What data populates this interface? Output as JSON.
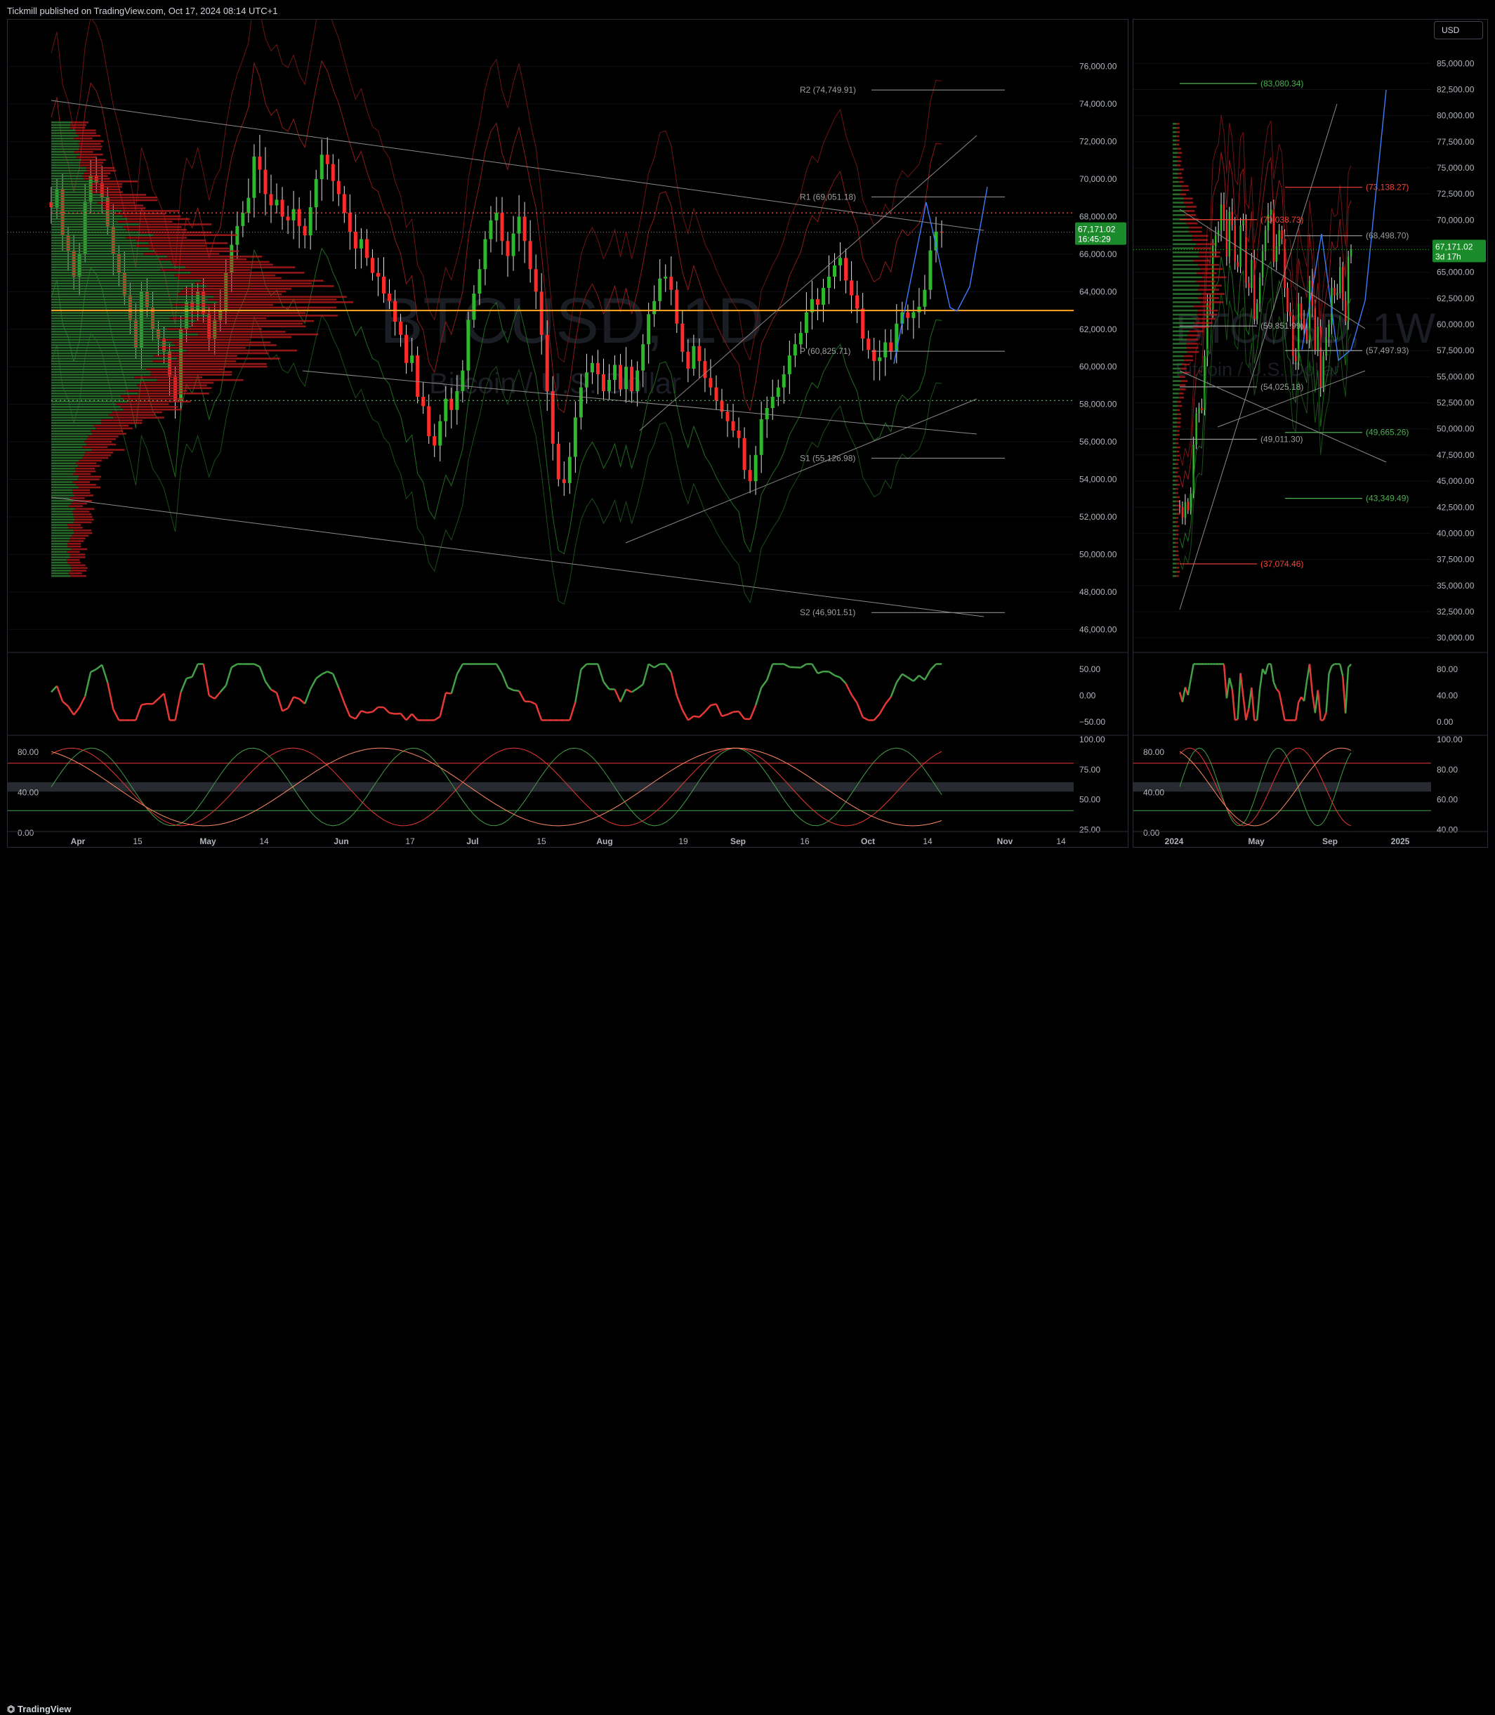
{
  "header": {
    "published": "Tickmill published on TradingView.com, Oct 17, 2024 08:14 UTC+1"
  },
  "footer": {
    "brand": "TradingView"
  },
  "currency_button": "USD",
  "colors": {
    "up": "#26a69a",
    "green": "#2e7d32",
    "red": "#d32f2f",
    "orange": "#ffa726",
    "blue": "#2962ff",
    "grid": "#1e222d"
  },
  "chart_data": [
    {
      "type": "candlestick",
      "symbol_watermark": "BTCUSD, 1D",
      "subtitle_watermark": "Bitcoin / U.S. Dollar",
      "last_price": "67,171.02",
      "countdown": "16:45:29",
      "y_ticks": [
        "76,000.00",
        "74,000.00",
        "72,000.00",
        "70,000.00",
        "68,000.00",
        "66,000.00",
        "64,000.00",
        "62,000.00",
        "60,000.00",
        "58,000.00",
        "56,000.00",
        "54,000.00",
        "52,000.00",
        "50,000.00",
        "48,000.00",
        "46,000.00"
      ],
      "ylim": [
        45000,
        77000
      ],
      "x_ticks": [
        "Apr",
        "15",
        "May",
        "14",
        "Jun",
        "17",
        "Jul",
        "15",
        "Aug",
        "19",
        "Sep",
        "16",
        "Oct",
        "14",
        "Nov",
        "14"
      ],
      "pivots": [
        {
          "label": "R2 (74,749.91)",
          "value": 74749.91
        },
        {
          "label": "R1 (69,051.18)",
          "value": 69051.18
        },
        {
          "label": "P (60,825.71)",
          "value": 60825.71
        },
        {
          "label": "S1 (55,126.98)",
          "value": 55126.98
        },
        {
          "label": "S2 (46,901.51)",
          "value": 46901.51
        }
      ],
      "poc_level": 63000,
      "value_area_high": 68200,
      "value_area_low": 58200,
      "closes": [
        68500,
        69500,
        67000,
        66200,
        64800,
        66000,
        68800,
        70200,
        69800,
        69000,
        67500,
        66000,
        65000,
        63800,
        62500,
        61000,
        64000,
        63200,
        62000,
        61500,
        60800,
        59500,
        58200,
        62000,
        63500,
        63000,
        64000,
        62800,
        61500,
        62500,
        63000,
        65000,
        66500,
        67500,
        68200,
        69000,
        71200,
        70500,
        69200,
        68600,
        68900,
        68000,
        67800,
        68400,
        67500,
        67000,
        68500,
        70000,
        71300,
        70800,
        69900,
        69200,
        68200,
        67200,
        66300,
        66800,
        65800,
        65000,
        64800,
        63900,
        63500,
        62400,
        61700,
        60200,
        60600,
        58400,
        57900,
        56300,
        55800,
        57100,
        58300,
        57700,
        58700,
        59800,
        62500,
        63900,
        65200,
        66800,
        67800,
        68200,
        66700,
        65900,
        67100,
        68000,
        66700,
        65200,
        64000,
        61700,
        58700,
        55900,
        54000,
        53800,
        55200,
        57300,
        58900,
        59700,
        60200,
        59600,
        58700,
        59300,
        60100,
        58800,
        60000,
        58700,
        59800,
        61200,
        62800,
        63500,
        64700,
        64800,
        64100,
        62300,
        60800,
        59900,
        61100,
        60300,
        59400,
        58900,
        58200,
        57600,
        57100,
        56600,
        56200,
        54500,
        53900,
        55300,
        57200,
        57800,
        58400,
        58900,
        59600,
        60600,
        61200,
        61800,
        62900,
        63600,
        63300,
        64200,
        64800,
        65400,
        65800,
        64600,
        63800,
        63100,
        61500,
        60900,
        60300,
        60500,
        61300,
        60800,
        62300,
        62900,
        62600,
        62900,
        63200,
        64100,
        66200,
        67200,
        67171
      ],
      "oscillator_ticks": [
        "50.00",
        "0.00",
        "−50.00"
      ],
      "stoch_ticks_left": [
        "80.00",
        "40.00",
        "0.00"
      ],
      "stoch_ticks_right": [
        "100.00",
        "75.00",
        "50.00",
        "25.00"
      ]
    },
    {
      "type": "candlestick",
      "symbol_watermark": "BTCUSD, 1W",
      "subtitle_watermark": "Bitcoin / U.S. Dollar",
      "last_price": "67,171.02",
      "countdown": "3d 17h",
      "y_ticks": [
        "85,000.00",
        "82,500.00",
        "80,000.00",
        "77,500.00",
        "75,000.00",
        "72,500.00",
        "70,000.00",
        "67,500.00",
        "65,000.00",
        "62,500.00",
        "60,000.00",
        "57,500.00",
        "55,000.00",
        "52,500.00",
        "50,000.00",
        "47,500.00",
        "45,000.00",
        "42,500.00",
        "40,000.00",
        "37,500.00",
        "35,000.00",
        "32,500.00",
        "30,000.00"
      ],
      "ylim": [
        29000,
        86500
      ],
      "x_ticks": [
        "2024",
        "May",
        "Sep",
        "2025"
      ],
      "levels": [
        {
          "label": "(83,080.34)",
          "value": 83080.34,
          "color": "green"
        },
        {
          "label": "(73,138.27)",
          "value": 73138.27,
          "color": "red"
        },
        {
          "label": "(70,038.73)",
          "value": 70038.73,
          "color": "red"
        },
        {
          "label": "(68,498.70)",
          "value": 68498.7,
          "color": "gray"
        },
        {
          "label": "(59,851.99)",
          "value": 59851.99,
          "color": "gray"
        },
        {
          "label": "(57,497.93)",
          "value": 57497.93,
          "color": "gray"
        },
        {
          "label": "(54,025.18)",
          "value": 54025.18,
          "color": "gray"
        },
        {
          "label": "(49,665.26)",
          "value": 49665.26,
          "color": "green"
        },
        {
          "label": "(49,011.30)",
          "value": 49011.3,
          "color": "gray"
        },
        {
          "label": "(43,349.49)",
          "value": 43349.49,
          "color": "green"
        },
        {
          "label": "(37,074.46)",
          "value": 37074.46,
          "color": "red"
        }
      ],
      "closes": [
        42500,
        41500,
        43000,
        42200,
        43800,
        48500,
        51500,
        52000,
        51800,
        57000,
        62000,
        61500,
        67500,
        68500,
        69000,
        71500,
        70000,
        66500,
        70800,
        69500,
        66000,
        65500,
        69500,
        70000,
        64000,
        63500,
        66200,
        60500,
        62000,
        64500,
        67000,
        69000,
        70500,
        71000,
        66000,
        67500,
        69000,
        68200,
        63500,
        61200,
        60800,
        57000,
        56500,
        62000,
        60500,
        59500,
        58500,
        64200,
        61800,
        57500,
        59800,
        54000,
        57000,
        58800,
        60000,
        63500,
        62800,
        63000,
        65500,
        62300,
        60300,
        66500,
        67171
      ],
      "oscillator_ticks": [
        "80.00",
        "40.00",
        "0.00"
      ],
      "stoch_ticks_left": [
        "80.00",
        "40.00",
        "0.00"
      ],
      "stoch_ticks_right": [
        "100.00",
        "80.00",
        "60.00",
        "40.00"
      ]
    }
  ]
}
